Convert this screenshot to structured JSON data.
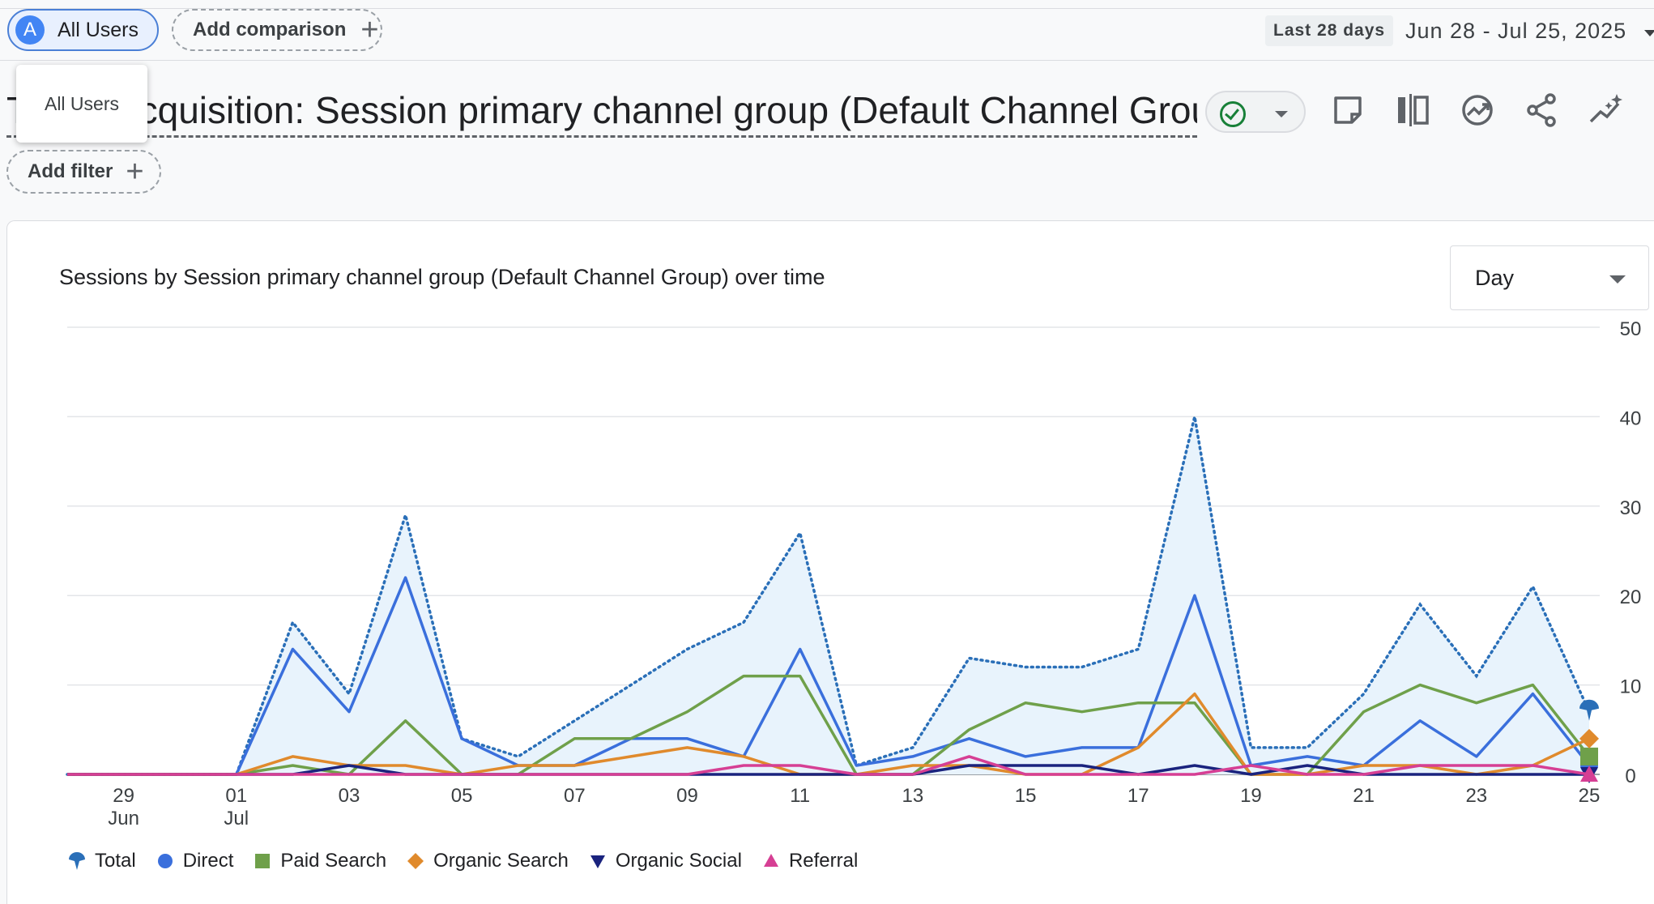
{
  "segment": {
    "avatar_letter": "A",
    "label": "All Users",
    "add_comparison_label": "Add comparison"
  },
  "date": {
    "label": "Last 28 days",
    "range": "Jun 28 - Jul 25, 2025"
  },
  "dropdown": {
    "item": "All Users"
  },
  "report": {
    "title": "Traffic acquisition: Session primary channel group (Default Channel Group)"
  },
  "filter": {
    "add_label": "Add filter"
  },
  "toolbar": {
    "icons": [
      "edit-comparisons-icon",
      "compare-icon",
      "insights-icon",
      "share-icon",
      "anomaly-icon"
    ]
  },
  "card": {
    "period_select": "Day"
  },
  "colors": {
    "Total": "#1a73e8",
    "Direct": "#3a6fdc",
    "Paid Search": "#6fa04a",
    "Organic Search": "#e08a2c",
    "Organic Social": "#1a237e",
    "Referral": "#d63f94"
  },
  "chart_data": {
    "type": "line",
    "title": "Sessions by Session primary channel group (Default Channel Group) over time",
    "x": [
      "Jun 28",
      "Jun 29",
      "Jun 30",
      "Jul 01",
      "Jul 02",
      "Jul 03",
      "Jul 04",
      "Jul 05",
      "Jul 06",
      "Jul 07",
      "Jul 08",
      "Jul 09",
      "Jul 10",
      "Jul 11",
      "Jul 12",
      "Jul 13",
      "Jul 14",
      "Jul 15",
      "Jul 16",
      "Jul 17",
      "Jul 18",
      "Jul 19",
      "Jul 20",
      "Jul 21",
      "Jul 22",
      "Jul 23",
      "Jul 24",
      "Jul 25"
    ],
    "x_tick_labels": [
      {
        "top": "29",
        "bottom": "Jun",
        "date": "Jun 29"
      },
      {
        "top": "01",
        "bottom": "Jul",
        "date": "Jul 01"
      },
      {
        "top": "03",
        "bottom": "",
        "date": "Jul 03"
      },
      {
        "top": "05",
        "bottom": "",
        "date": "Jul 05"
      },
      {
        "top": "07",
        "bottom": "",
        "date": "Jul 07"
      },
      {
        "top": "09",
        "bottom": "",
        "date": "Jul 09"
      },
      {
        "top": "11",
        "bottom": "",
        "date": "Jul 11"
      },
      {
        "top": "13",
        "bottom": "",
        "date": "Jul 13"
      },
      {
        "top": "15",
        "bottom": "",
        "date": "Jul 15"
      },
      {
        "top": "17",
        "bottom": "",
        "date": "Jul 17"
      },
      {
        "top": "19",
        "bottom": "",
        "date": "Jul 19"
      },
      {
        "top": "21",
        "bottom": "",
        "date": "Jul 21"
      },
      {
        "top": "23",
        "bottom": "",
        "date": "Jul 23"
      },
      {
        "top": "25",
        "bottom": "",
        "date": "Jul 25"
      }
    ],
    "y_ticks": [
      "0",
      "10",
      "20",
      "30",
      "40",
      "50"
    ],
    "ylim": [
      0,
      50
    ],
    "y_axis_side": "right",
    "grid": true,
    "legend_position": "bottom-left",
    "series": [
      {
        "name": "Total",
        "style": "dotted-area",
        "marker": "callout",
        "values": [
          0,
          0,
          0,
          0,
          17,
          9,
          29,
          4,
          2,
          6,
          10,
          14,
          17,
          27,
          1,
          3,
          13,
          12,
          12,
          14,
          40,
          3,
          3,
          9,
          19,
          11,
          21,
          7
        ]
      },
      {
        "name": "Direct",
        "style": "line",
        "marker": "circle",
        "values": [
          0,
          0,
          0,
          0,
          14,
          7,
          22,
          4,
          1,
          1,
          4,
          4,
          2,
          14,
          1,
          2,
          4,
          2,
          3,
          3,
          20,
          1,
          2,
          1,
          6,
          2,
          9,
          1
        ]
      },
      {
        "name": "Paid Search",
        "style": "line",
        "marker": "square",
        "values": [
          0,
          0,
          0,
          0,
          1,
          0,
          6,
          0,
          0,
          4,
          4,
          7,
          11,
          11,
          0,
          0,
          5,
          8,
          7,
          8,
          8,
          0,
          0,
          7,
          10,
          8,
          10,
          2
        ]
      },
      {
        "name": "Organic Search",
        "style": "line",
        "marker": "diamond",
        "values": [
          0,
          0,
          0,
          0,
          2,
          1,
          1,
          0,
          1,
          1,
          2,
          3,
          2,
          0,
          0,
          1,
          1,
          0,
          0,
          3,
          9,
          0,
          0,
          1,
          1,
          0,
          1,
          4
        ]
      },
      {
        "name": "Organic Social",
        "style": "line",
        "marker": "triangle-down",
        "values": [
          0,
          0,
          0,
          0,
          0,
          1,
          0,
          0,
          0,
          0,
          0,
          0,
          0,
          0,
          0,
          0,
          1,
          1,
          1,
          0,
          1,
          0,
          1,
          0,
          0,
          0,
          0,
          0
        ]
      },
      {
        "name": "Referral",
        "style": "line",
        "marker": "triangle-up",
        "values": [
          0,
          0,
          0,
          0,
          0,
          0,
          0,
          0,
          0,
          0,
          0,
          0,
          1,
          1,
          0,
          0,
          2,
          0,
          0,
          0,
          0,
          1,
          0,
          0,
          1,
          1,
          1,
          0
        ]
      }
    ]
  }
}
